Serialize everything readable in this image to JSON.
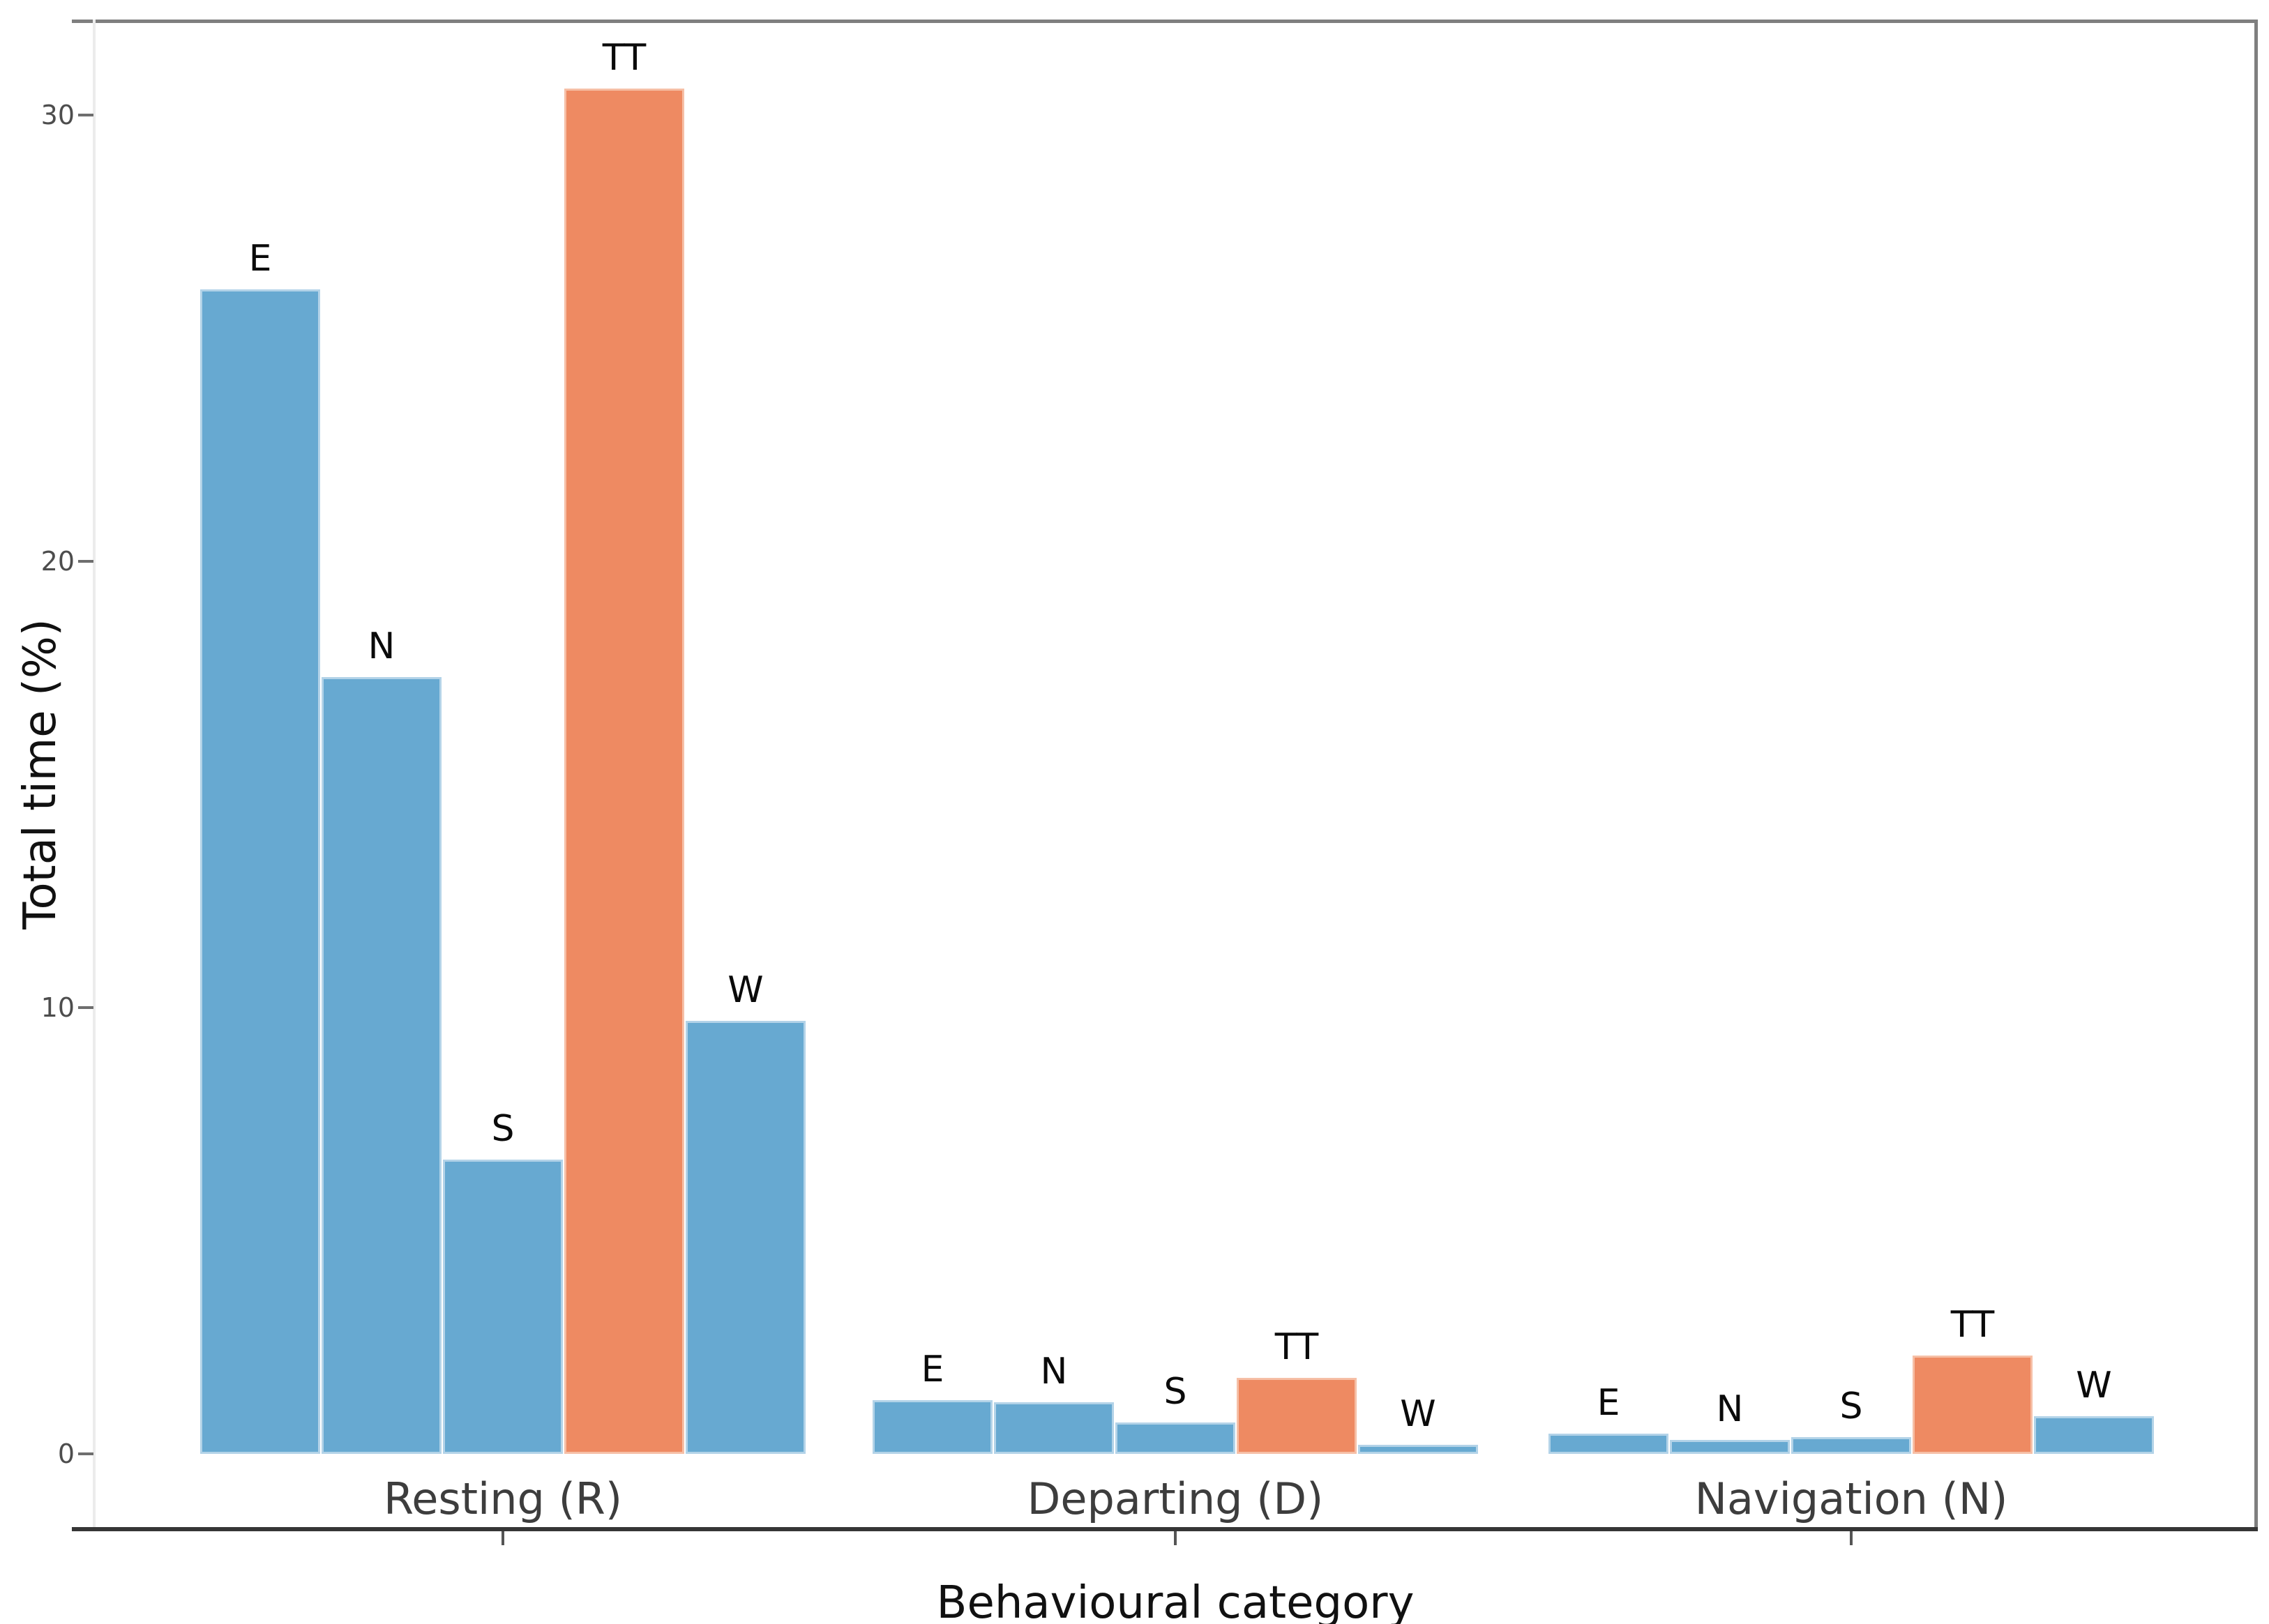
{
  "chart_data": {
    "type": "bar",
    "title": "",
    "xlabel": "Behavioural category",
    "ylabel": "Total time (%)",
    "ylim": [
      0,
      32
    ],
    "yticks": [
      0,
      10,
      20,
      30
    ],
    "grid": false,
    "legend": null,
    "colors": {
      "bar_default": "#67a9d1",
      "bar_highlight": "#ee8a62",
      "axis_line": "#363636",
      "panel_border": "#7f7f7f",
      "tick_text": "#4d4d4d",
      "group_label_text": "#3d3d3d"
    },
    "series_note": "each group has 5 bars labelled by whale id; TT bars highlighted orange",
    "groups": [
      {
        "label": "Resting (R)",
        "bars": [
          {
            "label": "E",
            "value": 26.1,
            "highlight": false
          },
          {
            "label": "N",
            "value": 17.4,
            "highlight": false
          },
          {
            "label": "S",
            "value": 6.6,
            "highlight": false
          },
          {
            "label": "TT",
            "value": 30.6,
            "highlight": true
          },
          {
            "label": "W",
            "value": 9.7,
            "highlight": false
          }
        ]
      },
      {
        "label": "Departing (D)",
        "bars": [
          {
            "label": "E",
            "value": 1.2,
            "highlight": false
          },
          {
            "label": "N",
            "value": 1.15,
            "highlight": false
          },
          {
            "label": "S",
            "value": 0.7,
            "highlight": false
          },
          {
            "label": "TT",
            "value": 1.7,
            "highlight": true
          },
          {
            "label": "W",
            "value": 0.2,
            "highlight": false
          }
        ]
      },
      {
        "label": "Navigation (N)",
        "bars": [
          {
            "label": "E",
            "value": 0.45,
            "highlight": false
          },
          {
            "label": "N",
            "value": 0.32,
            "highlight": false
          },
          {
            "label": "S",
            "value": 0.38,
            "highlight": false
          },
          {
            "label": "TT",
            "value": 2.2,
            "highlight": true
          },
          {
            "label": "W",
            "value": 0.85,
            "highlight": false
          }
        ]
      }
    ]
  }
}
